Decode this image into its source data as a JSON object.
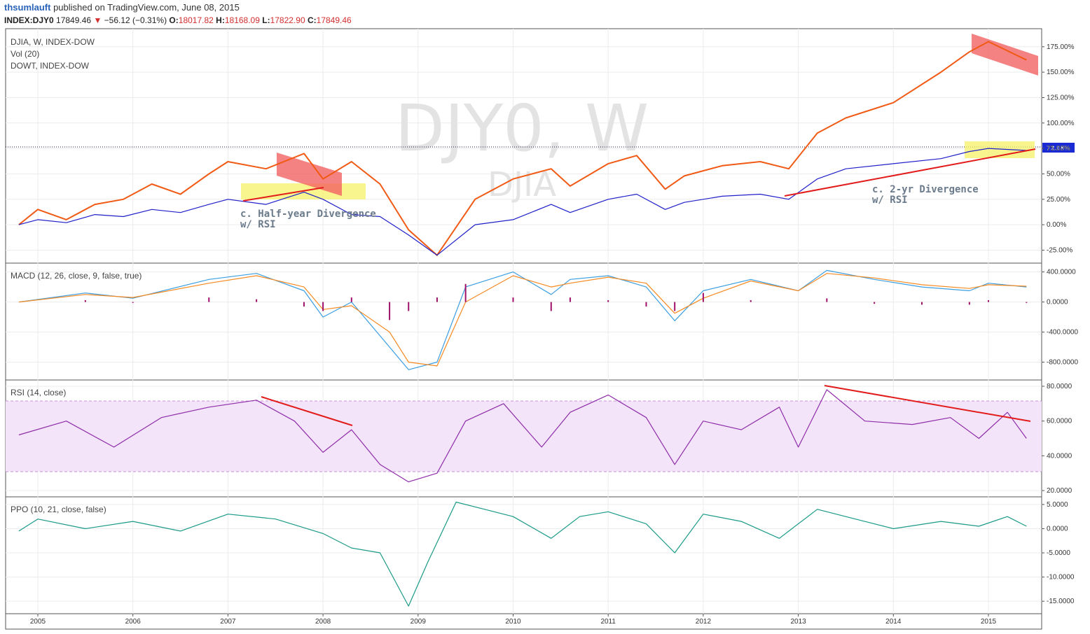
{
  "header": {
    "user": "thsumlauft",
    "published": "published on TradingView.com, June 08, 2015",
    "symbol": "INDEX:DJY0",
    "last": "17849.46",
    "change": "−56.12 (−0.31%)",
    "o_label": "O:",
    "o": "18017.82",
    "h_label": "H:",
    "h": "18168.09",
    "l_label": "L:",
    "l": "17822.90",
    "c_label": "C:",
    "c": "17849.46"
  },
  "watermark": {
    "main": "DJY0, W",
    "sub": "DJIA"
  },
  "colors": {
    "djia": "#f05a14",
    "dowt": "#1f1fc9",
    "macd": "#3b9ee0",
    "signal": "#f58a22",
    "hist": "#a0106a",
    "rsi": "#8e2da8",
    "ppo": "#1a9a88",
    "trend": "#e21b1b"
  },
  "panels": {
    "main": {
      "labels": [
        "DJIA, W, INDEX-DOW",
        "Vol (20)",
        "DOWT, INDEX-DOW"
      ],
      "ticks": [
        "175.00%",
        "150.00%",
        "125.00%",
        "100.00%",
        "75.00%",
        "50.00%",
        "25.00%",
        "0.00%",
        "-25.00%"
      ],
      "last_value": "73.08%"
    },
    "macd": {
      "label": "MACD (12, 26, close, 9, false, true)",
      "ticks": [
        "400.0000",
        "0.0000",
        "-400.0000",
        "-800.0000"
      ]
    },
    "rsi": {
      "label": "RSI (14, close)",
      "ticks": [
        "80.0000",
        "60.0000",
        "40.0000",
        "20.0000"
      ]
    },
    "ppo": {
      "label": "PPO (10, 21, close, false)",
      "ticks": [
        "5.0000",
        "0.0000",
        "-5.0000",
        "-10.0000",
        "-15.0000"
      ]
    }
  },
  "annotations": {
    "half_year_1": "c. Half-year Divergence",
    "half_year_2": "w/ RSI",
    "two_yr_1": "c. 2-yr Divergence",
    "two_yr_2": "w/ RSI"
  },
  "chart_data": [
    {
      "type": "line",
      "panel": "main",
      "x_years": [
        2004.8,
        2005.0,
        2005.3,
        2005.6,
        2005.9,
        2006.2,
        2006.5,
        2006.8,
        2007.0,
        2007.4,
        2007.8,
        2008.0,
        2008.3,
        2008.6,
        2008.9,
        2009.2,
        2009.6,
        2010.0,
        2010.4,
        2010.6,
        2011.0,
        2011.3,
        2011.6,
        2011.8,
        2012.2,
        2012.6,
        2012.9,
        2013.2,
        2013.5,
        2014.0,
        2014.5,
        2014.8,
        2015.0,
        2015.4
      ],
      "ylim": [
        -35,
        190
      ],
      "series": [
        {
          "name": "DJIA",
          "color": "#f05a14",
          "values": [
            0,
            15,
            5,
            20,
            25,
            40,
            30,
            50,
            62,
            55,
            70,
            45,
            62,
            40,
            -5,
            -30,
            25,
            45,
            55,
            38,
            60,
            68,
            35,
            48,
            58,
            62,
            55,
            90,
            105,
            120,
            150,
            170,
            180,
            162
          ]
        },
        {
          "name": "DOWT",
          "color": "#1f1fc9",
          "values": [
            0,
            5,
            2,
            10,
            8,
            15,
            12,
            20,
            25,
            20,
            32,
            25,
            10,
            8,
            -10,
            -30,
            0,
            5,
            20,
            12,
            25,
            30,
            15,
            22,
            28,
            30,
            25,
            45,
            55,
            60,
            65,
            72,
            75,
            73
          ]
        }
      ]
    },
    {
      "type": "line",
      "panel": "macd",
      "x_years": [
        2004.8,
        2005.5,
        2006.0,
        2006.8,
        2007.3,
        2007.8,
        2008.0,
        2008.3,
        2008.7,
        2008.9,
        2009.2,
        2009.5,
        2010.0,
        2010.4,
        2010.6,
        2011.0,
        2011.4,
        2011.7,
        2012.0,
        2012.5,
        2013.0,
        2013.3,
        2013.8,
        2014.3,
        2014.8,
        2015.0,
        2015.4
      ],
      "ylim": [
        -1000,
        480
      ],
      "series": [
        {
          "name": "MACD",
          "color": "#3b9ee0",
          "values": [
            0,
            120,
            50,
            300,
            380,
            150,
            -200,
            0,
            -600,
            -900,
            -800,
            200,
            400,
            100,
            300,
            350,
            200,
            -250,
            150,
            300,
            150,
            420,
            300,
            200,
            150,
            250,
            200
          ]
        },
        {
          "name": "Signal",
          "color": "#f58a22",
          "values": [
            0,
            100,
            60,
            250,
            350,
            200,
            -100,
            -50,
            -400,
            -800,
            -850,
            0,
            350,
            200,
            250,
            330,
            250,
            -150,
            50,
            280,
            150,
            380,
            320,
            230,
            180,
            230,
            210
          ]
        }
      ]
    },
    {
      "type": "line",
      "panel": "rsi",
      "x_years": [
        2004.8,
        2005.3,
        2005.8,
        2006.3,
        2006.8,
        2007.3,
        2007.7,
        2008.0,
        2008.3,
        2008.6,
        2008.9,
        2009.2,
        2009.5,
        2009.9,
        2010.3,
        2010.6,
        2011.0,
        2011.4,
        2011.7,
        2012.0,
        2012.4,
        2012.8,
        2013.0,
        2013.3,
        2013.7,
        2014.2,
        2014.6,
        2014.9,
        2015.2,
        2015.4
      ],
      "ylim": [
        18,
        82
      ],
      "series": [
        {
          "name": "RSI",
          "color": "#8e2da8",
          "values": [
            52,
            60,
            45,
            62,
            68,
            72,
            60,
            42,
            55,
            35,
            25,
            30,
            60,
            70,
            45,
            65,
            75,
            62,
            35,
            60,
            55,
            68,
            45,
            78,
            60,
            58,
            62,
            50,
            65,
            50
          ]
        }
      ]
    },
    {
      "type": "line",
      "panel": "ppo",
      "x_years": [
        2004.8,
        2005.0,
        2005.5,
        2006.0,
        2006.5,
        2007.0,
        2007.5,
        2008.0,
        2008.3,
        2008.6,
        2008.9,
        2009.1,
        2009.4,
        2009.7,
        2010.0,
        2010.4,
        2010.7,
        2011.0,
        2011.4,
        2011.7,
        2012.0,
        2012.4,
        2012.8,
        2013.2,
        2013.6,
        2014.0,
        2014.5,
        2014.9,
        2015.2,
        2015.4
      ],
      "ylim": [
        -17,
        6
      ],
      "series": [
        {
          "name": "PPO",
          "color": "#1a9a88",
          "values": [
            -0.5,
            2,
            0,
            1.5,
            -0.5,
            3,
            2,
            -1,
            -4,
            -5,
            -16,
            -7,
            5.5,
            4,
            2.5,
            -2,
            2.5,
            3.5,
            1,
            -5,
            3,
            1.5,
            -2,
            4,
            2,
            0,
            1.5,
            0.5,
            2.5,
            0.5
          ]
        }
      ]
    }
  ],
  "x_axis": {
    "years": [
      "2005",
      "2006",
      "2007",
      "2008",
      "2009",
      "2010",
      "2011",
      "2012",
      "2013",
      "2014",
      "2015"
    ]
  }
}
